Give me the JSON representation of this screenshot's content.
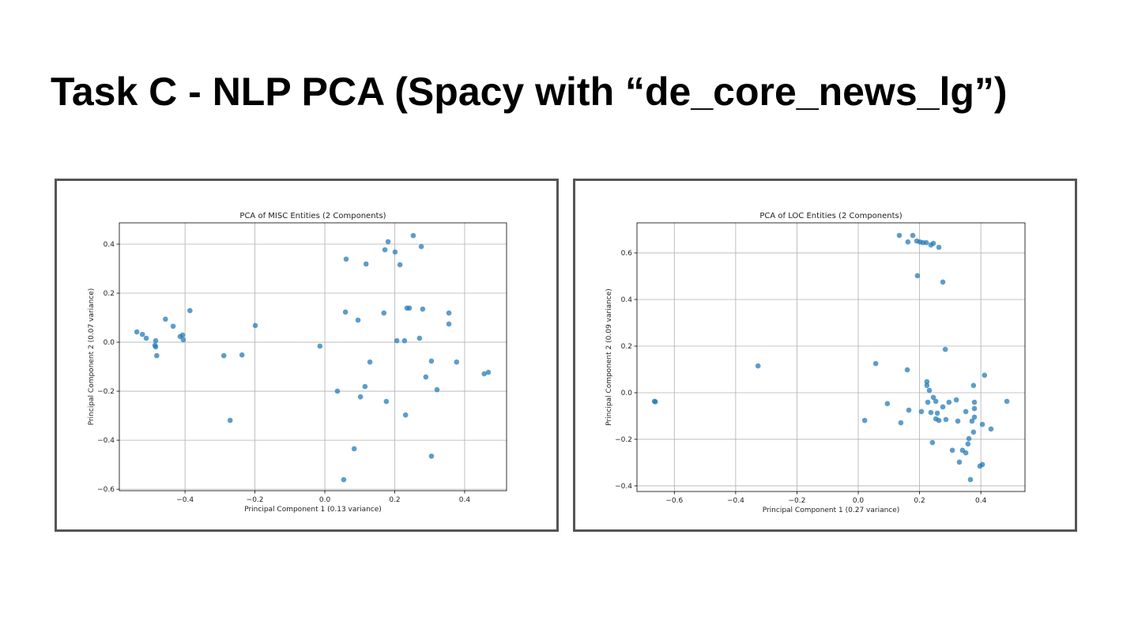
{
  "title": "Task C - NLP PCA (Spacy with “de_core_news_lg”)",
  "chart_data": [
    {
      "type": "scatter",
      "title": "PCA of MISC Entities (2 Components)",
      "xlabel": "Principal Component 1 (0.13 variance)",
      "ylabel": "Principal Component 2 (0.07 variance)",
      "color": "#1f77b4",
      "grid": true,
      "xlim": [
        -0.588,
        0.52
      ],
      "ylim": [
        -0.606,
        0.487
      ],
      "xticks": [
        {
          "value": -0.4,
          "label": "−0.4"
        },
        {
          "value": -0.2,
          "label": "−0.2"
        },
        {
          "value": 0,
          "label": "0.0"
        },
        0.2,
        0.4
      ],
      "yticks": [
        {
          "value": -0.6,
          "label": "−0.6"
        },
        {
          "value": -0.4,
          "label": "−0.4"
        },
        {
          "value": -0.2,
          "label": "−0.2"
        },
        {
          "value": 0,
          "label": "0.0"
        },
        0.2,
        0.4
      ],
      "x": [
        -0.538,
        -0.522,
        -0.511,
        -0.484,
        -0.486,
        -0.484,
        -0.481,
        -0.456,
        -0.434,
        -0.414,
        -0.407,
        -0.405,
        -0.386,
        -0.289,
        -0.271,
        -0.237,
        -0.199,
        -0.014,
        0.036,
        0.054,
        0.061,
        0.059,
        0.084,
        0.095,
        0.102,
        0.115,
        0.118,
        0.129,
        0.169,
        0.172,
        0.176,
        0.181,
        0.201,
        0.206,
        0.215,
        0.228,
        0.231,
        0.235,
        0.242,
        0.253,
        0.271,
        0.276,
        0.28,
        0.289,
        0.305,
        0.305,
        0.321,
        0.355,
        0.355,
        0.377,
        0.456,
        0.468
      ],
      "values": [
        0.042,
        0.032,
        0.016,
        0.006,
        -0.013,
        -0.019,
        -0.055,
        0.094,
        0.065,
        0.023,
        0.029,
        0.01,
        0.129,
        -0.055,
        -0.319,
        -0.052,
        0.068,
        -0.016,
        -0.2,
        -0.561,
        0.339,
        0.123,
        -0.435,
        0.09,
        -0.223,
        -0.181,
        0.319,
        -0.081,
        0.119,
        0.377,
        -0.242,
        0.41,
        0.368,
        0.006,
        0.316,
        0.006,
        -0.297,
        0.139,
        0.139,
        0.435,
        0.016,
        0.39,
        0.135,
        -0.142,
        -0.077,
        -0.465,
        -0.194,
        0.119,
        0.074,
        -0.081,
        -0.129,
        -0.123
      ]
    },
    {
      "type": "scatter",
      "title": "PCA of LOC Entities (2 Components)",
      "xlabel": "Principal Component 1 (0.27 variance)",
      "ylabel": "Principal Component 2 (0.09 variance)",
      "color": "#1f77b4",
      "grid": true,
      "xlim": [
        -0.722,
        0.544
      ],
      "ylim": [
        -0.424,
        0.729
      ],
      "xticks": [
        {
          "value": -0.6,
          "label": "−0.6"
        },
        {
          "value": -0.4,
          "label": "−0.4"
        },
        {
          "value": -0.2,
          "label": "−0.2"
        },
        {
          "value": 0,
          "label": "0.0"
        },
        0.2,
        0.4
      ],
      "yticks": [
        {
          "value": -0.4,
          "label": "−0.4"
        },
        {
          "value": -0.2,
          "label": "−0.2"
        },
        {
          "value": 0,
          "label": "0.0"
        },
        0.2,
        0.4,
        0.6
      ],
      "x": [
        -0.665,
        -0.662,
        -0.327,
        0.021,
        0.057,
        0.095,
        0.139,
        0.134,
        0.162,
        0.178,
        0.191,
        0.201,
        0.211,
        0.222,
        0.237,
        0.245,
        0.263,
        0.193,
        0.276,
        0.284,
        0.16,
        0.165,
        0.206,
        0.224,
        0.224,
        0.227,
        0.232,
        0.237,
        0.245,
        0.242,
        0.253,
        0.253,
        0.258,
        0.263,
        0.276,
        0.286,
        0.296,
        0.307,
        0.32,
        0.325,
        0.33,
        0.34,
        0.351,
        0.351,
        0.358,
        0.361,
        0.371,
        0.366,
        0.376,
        0.376,
        0.379,
        0.379,
        0.379,
        0.397,
        0.405,
        0.405,
        0.412,
        0.433,
        0.485
      ],
      "values": [
        -0.037,
        -0.039,
        0.115,
        -0.119,
        0.125,
        -0.047,
        -0.129,
        0.675,
        0.647,
        0.675,
        0.651,
        0.647,
        0.644,
        0.644,
        0.634,
        0.641,
        0.624,
        0.502,
        0.475,
        0.186,
        0.098,
        -0.075,
        -0.081,
        0.047,
        0.031,
        -0.041,
        0.01,
        -0.085,
        -0.02,
        -0.214,
        -0.037,
        -0.112,
        -0.088,
        -0.119,
        -0.061,
        -0.115,
        -0.041,
        -0.247,
        -0.031,
        -0.122,
        -0.298,
        -0.247,
        -0.081,
        -0.258,
        -0.22,
        -0.197,
        -0.122,
        -0.373,
        0.031,
        -0.169,
        -0.041,
        -0.068,
        -0.105,
        -0.315,
        -0.308,
        -0.136,
        0.075,
        -0.156,
        -0.037
      ]
    }
  ]
}
